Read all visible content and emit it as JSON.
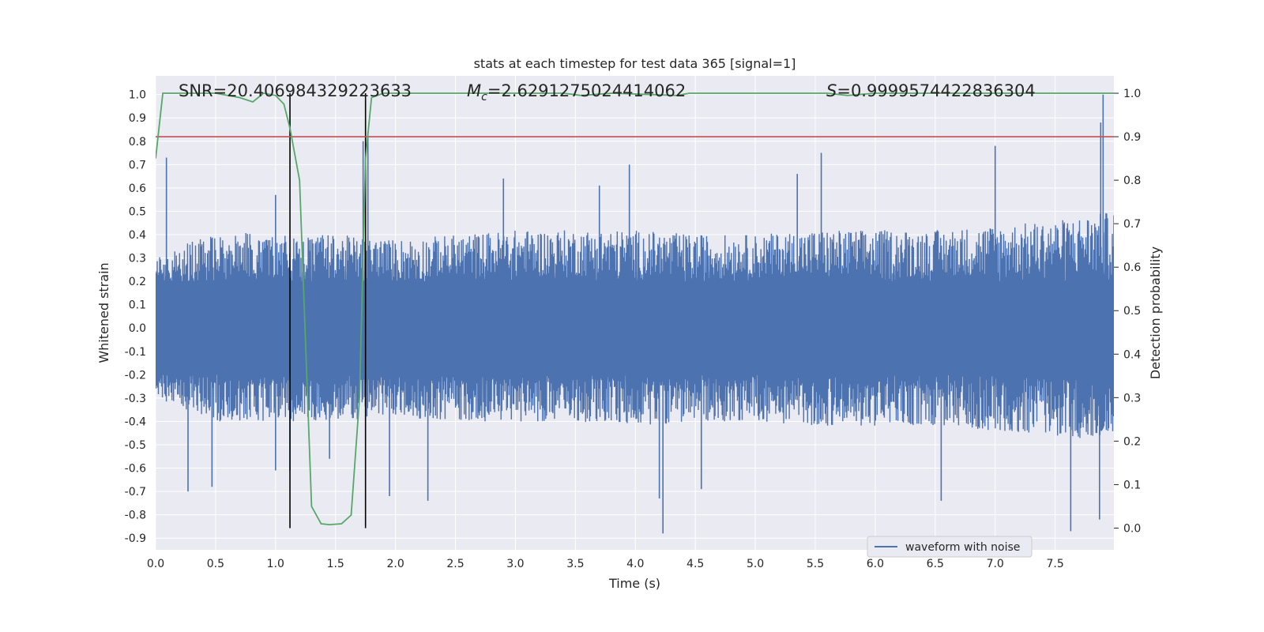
{
  "chart_data": {
    "type": "line",
    "title": "stats at each timestep for test data 365 [signal=1]",
    "xlabel": "Time (s)",
    "ylabel": "Whitened strain",
    "y2label": "Detection probability",
    "xlim": [
      0.0,
      7.99
    ],
    "ylim": [
      -0.95,
      1.08
    ],
    "y2lim": [
      -0.05,
      1.04
    ],
    "x_ticks": [
      "0.0",
      "0.5",
      "1.0",
      "1.5",
      "2.0",
      "2.5",
      "3.0",
      "3.5",
      "4.0",
      "4.5",
      "5.0",
      "5.5",
      "6.0",
      "6.5",
      "7.0",
      "7.5"
    ],
    "x_tick_values": [
      0.0,
      0.5,
      1.0,
      1.5,
      2.0,
      2.5,
      3.0,
      3.5,
      4.0,
      4.5,
      5.0,
      5.5,
      6.0,
      6.5,
      7.0,
      7.5
    ],
    "y_ticks": [
      "-0.9",
      "-0.8",
      "-0.7",
      "-0.6",
      "-0.5",
      "-0.4",
      "-0.3",
      "-0.2",
      "-0.1",
      "0.0",
      "0.1",
      "0.2",
      "0.3",
      "0.4",
      "0.5",
      "0.6",
      "0.7",
      "0.8",
      "0.9",
      "1.0"
    ],
    "y_tick_values": [
      -0.9,
      -0.8,
      -0.7,
      -0.6,
      -0.5,
      -0.4,
      -0.3,
      -0.2,
      -0.1,
      0.0,
      0.1,
      0.2,
      0.3,
      0.4,
      0.5,
      0.6,
      0.7,
      0.8,
      0.9,
      1.0
    ],
    "y2_ticks": [
      "0.0",
      "0.1",
      "0.2",
      "0.3",
      "0.4",
      "0.5",
      "0.6",
      "0.7",
      "0.8",
      "0.9",
      "1.0"
    ],
    "y2_tick_values": [
      0.0,
      0.1,
      0.2,
      0.3,
      0.4,
      0.5,
      0.6,
      0.7,
      0.8,
      0.9,
      1.0
    ],
    "grid": true,
    "legend": {
      "placement": "bottom-right",
      "entries": [
        "waveform with noise"
      ]
    },
    "annotations": {
      "snr": "SNR=20.406984329223633",
      "mc_symbol": "M",
      "mc_sub": "c",
      "mc_value": "=2.6291275024414062",
      "s_symbol": "S",
      "s_value": "=0.9999574422836304"
    },
    "threshold_y2": 0.9,
    "vlines_x": [
      1.12,
      1.75
    ],
    "series": [
      {
        "name": "waveform with noise",
        "color": "#4c72b0",
        "envelope_upper": [
          [
            0.0,
            0.3
          ],
          [
            0.5,
            0.42
          ],
          [
            1.0,
            0.4
          ],
          [
            1.5,
            0.4
          ],
          [
            2.0,
            0.38
          ],
          [
            2.5,
            0.4
          ],
          [
            3.0,
            0.42
          ],
          [
            3.5,
            0.42
          ],
          [
            4.0,
            0.42
          ],
          [
            4.5,
            0.4
          ],
          [
            5.0,
            0.4
          ],
          [
            5.5,
            0.42
          ],
          [
            6.0,
            0.42
          ],
          [
            6.5,
            0.42
          ],
          [
            7.0,
            0.44
          ],
          [
            7.5,
            0.46
          ],
          [
            7.99,
            0.5
          ]
        ],
        "envelope_lower": [
          [
            0.0,
            -0.3
          ],
          [
            0.5,
            -0.4
          ],
          [
            1.0,
            -0.4
          ],
          [
            1.5,
            -0.4
          ],
          [
            2.0,
            -0.38
          ],
          [
            2.5,
            -0.4
          ],
          [
            3.0,
            -0.4
          ],
          [
            3.5,
            -0.4
          ],
          [
            4.0,
            -0.42
          ],
          [
            4.5,
            -0.4
          ],
          [
            5.0,
            -0.4
          ],
          [
            5.5,
            -0.42
          ],
          [
            6.0,
            -0.42
          ],
          [
            6.5,
            -0.42
          ],
          [
            7.0,
            -0.44
          ],
          [
            7.5,
            -0.46
          ],
          [
            7.99,
            -0.5
          ]
        ],
        "peaks": [
          [
            0.09,
            0.73
          ],
          [
            0.27,
            -0.7
          ],
          [
            0.47,
            -0.68
          ],
          [
            1.0,
            0.57
          ],
          [
            1.0,
            -0.61
          ],
          [
            1.12,
            -0.61
          ],
          [
            1.45,
            -0.56
          ],
          [
            1.73,
            0.8
          ],
          [
            1.77,
            0.84
          ],
          [
            1.95,
            -0.72
          ],
          [
            2.27,
            -0.74
          ],
          [
            2.9,
            0.64
          ],
          [
            3.7,
            0.61
          ],
          [
            3.95,
            0.7
          ],
          [
            4.23,
            -0.88
          ],
          [
            4.2,
            -0.73
          ],
          [
            4.55,
            -0.69
          ],
          [
            5.35,
            0.66
          ],
          [
            5.55,
            0.75
          ],
          [
            6.55,
            -0.74
          ],
          [
            7.0,
            0.78
          ],
          [
            7.63,
            -0.87
          ],
          [
            7.87,
            -0.82
          ],
          [
            7.9,
            1.0
          ],
          [
            7.88,
            0.88
          ]
        ]
      },
      {
        "name": "",
        "color": "#55a868",
        "axis": "y2",
        "points": [
          [
            0.0,
            0.85
          ],
          [
            0.06,
            1.0
          ],
          [
            0.12,
            1.0
          ],
          [
            0.5,
            1.0
          ],
          [
            0.7,
            0.99
          ],
          [
            0.81,
            0.98
          ],
          [
            0.9,
            1.0
          ],
          [
            1.0,
            0.995
          ],
          [
            1.07,
            0.975
          ],
          [
            1.12,
            0.92
          ],
          [
            1.2,
            0.8
          ],
          [
            1.3,
            0.05
          ],
          [
            1.38,
            0.01
          ],
          [
            1.45,
            0.008
          ],
          [
            1.55,
            0.01
          ],
          [
            1.63,
            0.03
          ],
          [
            1.7,
            0.3
          ],
          [
            1.75,
            0.85
          ],
          [
            1.8,
            0.99
          ],
          [
            1.9,
            1.0
          ],
          [
            2.5,
            1.0
          ],
          [
            3.4,
            1.0
          ],
          [
            3.55,
            0.995
          ],
          [
            3.8,
            1.0
          ],
          [
            4.35,
            0.995
          ],
          [
            4.45,
            1.0
          ],
          [
            5.0,
            1.0
          ],
          [
            5.6,
            1.0
          ],
          [
            5.77,
            0.995
          ],
          [
            6.0,
            1.0
          ],
          [
            7.99,
            1.0
          ]
        ]
      }
    ]
  }
}
